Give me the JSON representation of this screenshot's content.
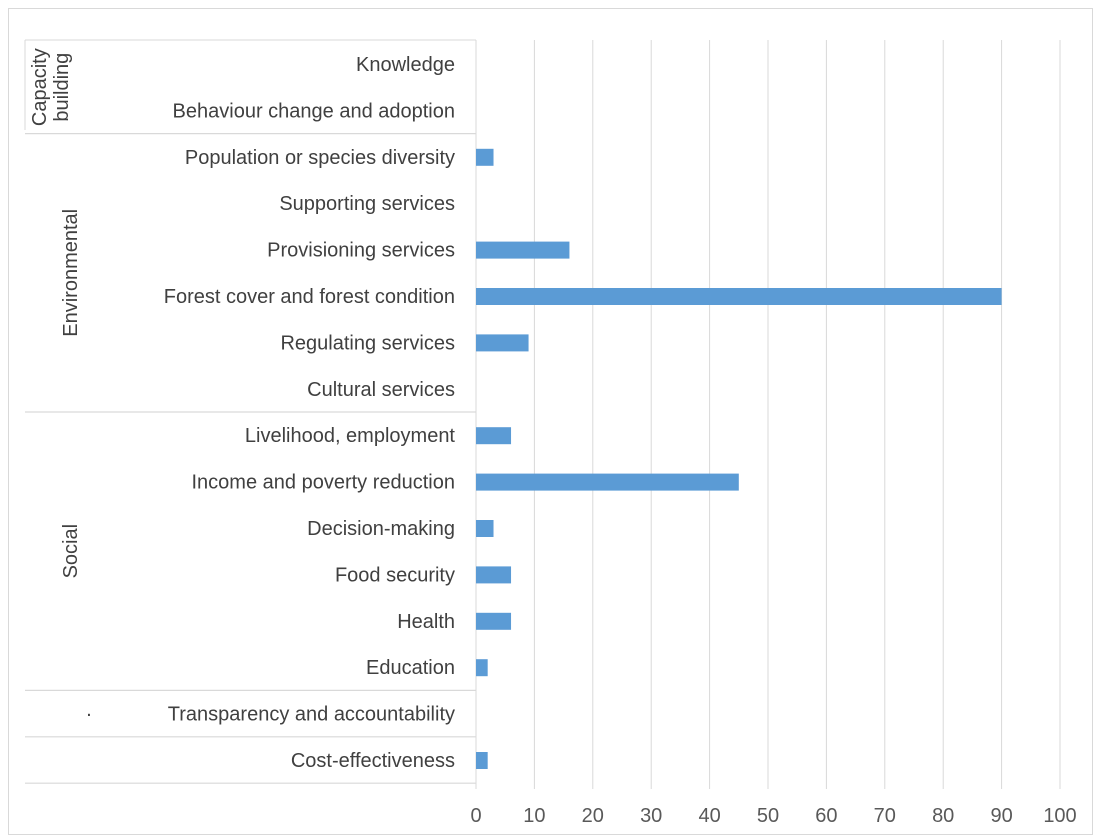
{
  "chart_data": {
    "type": "bar",
    "orientation": "horizontal",
    "groups": [
      {
        "name": "Capacity building",
        "name_lines": [
          "Capacity",
          "building"
        ],
        "categories": [
          "Knowledge",
          "Behaviour change and adoption"
        ]
      },
      {
        "name": "Environmental",
        "categories": [
          "Population or species diversity",
          "Supporting services",
          "Provisioning services",
          "Forest cover and forest condition",
          "Regulating services",
          "Cultural services"
        ]
      },
      {
        "name": "Social",
        "categories": [
          "Livelihood, employment",
          "Income and poverty reduction",
          "Decision-making",
          "Food security",
          "Health",
          "Education"
        ]
      },
      {
        "name": "·",
        "categories": [
          "Transparency and accountability"
        ]
      },
      {
        "name": "",
        "categories": [
          "Cost-effectiveness"
        ]
      }
    ],
    "categories": [
      "Knowledge",
      "Behaviour change and adoption",
      "Population or species diversity",
      "Supporting services",
      "Provisioning services",
      "Forest cover and forest condition",
      "Regulating services",
      "Cultural services",
      "Livelihood, employment",
      "Income and poverty reduction",
      "Decision-making",
      "Food security",
      "Health",
      "Education",
      "Transparency and accountability",
      "Cost-effectiveness"
    ],
    "values": [
      0,
      0,
      3,
      0,
      16,
      90,
      9,
      0,
      6,
      45,
      3,
      6,
      6,
      2,
      0,
      2
    ],
    "xlim": [
      0,
      100
    ],
    "xticks": [
      "0",
      "10",
      "20",
      "30",
      "40",
      "50",
      "60",
      "70",
      "80",
      "90",
      "100"
    ],
    "grid": "vertical",
    "legend": "none",
    "title": "",
    "xlabel": "",
    "ylabel": "",
    "bar_color": "#5b9bd5",
    "grid_color": "#d9d9d9"
  }
}
